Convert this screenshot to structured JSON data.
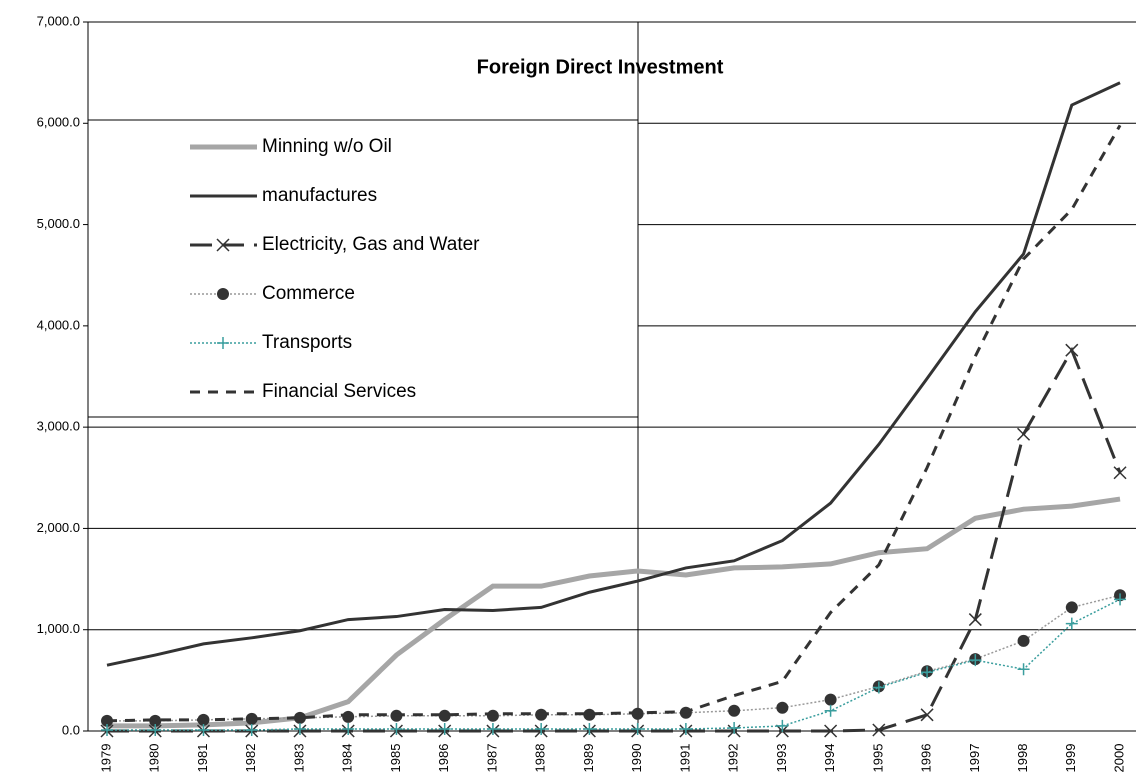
{
  "chart_data": {
    "type": "line",
    "title": "Foreign Direct Investment",
    "categories": [
      "1979",
      "1980",
      "1981",
      "1982",
      "1983",
      "1984",
      "1985",
      "1986",
      "1987",
      "1988",
      "1989",
      "1990",
      "1991",
      "1992",
      "1993",
      "1994",
      "1995",
      "1996",
      "1997",
      "1998",
      "1999",
      "2000"
    ],
    "series": [
      {
        "name": "Minning w/o Oil",
        "color": "#a6a6a6",
        "width": 5,
        "values": [
          50,
          50,
          60,
          80,
          130,
          290,
          750,
          1100,
          1430,
          1430,
          1530,
          1580,
          1540,
          1610,
          1620,
          1650,
          1760,
          1800,
          2100,
          2190,
          2220,
          2290
        ]
      },
      {
        "name": "manufactures",
        "color": "#333333",
        "width": 3,
        "values": [
          650,
          750,
          860,
          920,
          990,
          1100,
          1130,
          1200,
          1190,
          1220,
          1370,
          1480,
          1610,
          1680,
          1880,
          2250,
          2830,
          3480,
          4140,
          4710,
          6180,
          6400
        ]
      },
      {
        "name": "Electricity, Gas and Water",
        "color": "#333333",
        "width": 3,
        "dash": "22,10",
        "marker": "x",
        "values": [
          0,
          0,
          0,
          0,
          0,
          0,
          0,
          0,
          0,
          0,
          0,
          0,
          0,
          0,
          0,
          0,
          10,
          160,
          1100,
          2930,
          3760,
          2550
        ]
      },
      {
        "name": "Commerce",
        "color": "#999999",
        "width": 1.5,
        "dash": "2,2",
        "marker": "circle",
        "values": [
          100,
          100,
          110,
          120,
          130,
          140,
          150,
          150,
          150,
          160,
          160,
          170,
          180,
          200,
          230,
          310,
          440,
          590,
          710,
          890,
          1220,
          1340
        ]
      },
      {
        "name": "Transports",
        "color": "#3a9e9e",
        "width": 1.5,
        "dash": "2,2",
        "marker": "plus",
        "values": [
          10,
          10,
          10,
          10,
          20,
          20,
          20,
          20,
          20,
          20,
          20,
          20,
          20,
          30,
          50,
          200,
          430,
          580,
          700,
          610,
          1060,
          1300
        ]
      },
      {
        "name": "Financial Services",
        "color": "#333333",
        "width": 3,
        "dash": "10,8",
        "values": [
          100,
          110,
          110,
          120,
          130,
          160,
          160,
          160,
          170,
          170,
          170,
          180,
          190,
          350,
          490,
          1170,
          1640,
          2600,
          3700,
          4660,
          5150,
          5980
        ]
      }
    ],
    "ylim": [
      0,
      7000
    ],
    "yticks": [
      {
        "value": 0,
        "label": "0.0"
      },
      {
        "value": 1000,
        "label": "1,000.0"
      },
      {
        "value": 2000,
        "label": "2,000.0"
      },
      {
        "value": 3000,
        "label": "3,000.0"
      },
      {
        "value": 4000,
        "label": "4,000.0"
      },
      {
        "value": 5000,
        "label": "5,000.0"
      },
      {
        "value": 6000,
        "label": "6,000.0"
      },
      {
        "value": 7000,
        "label": "7,000.0"
      }
    ],
    "grid": true,
    "legend": "upper left"
  }
}
